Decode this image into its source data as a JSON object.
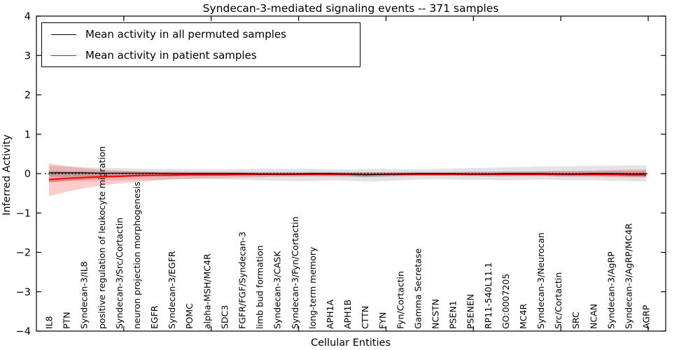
{
  "chart_data": {
    "type": "line",
    "title": "Syndecan-3-mediated signaling events -- 371 samples",
    "xlabel": "Cellular Entities",
    "ylabel": "Inferred Activity",
    "ylim": [
      -4,
      4
    ],
    "yticks": [
      4,
      3,
      2,
      1,
      0,
      -1,
      -2,
      -3,
      -4
    ],
    "x_numeric_ticks": [
      5,
      10,
      15,
      20,
      25,
      30,
      35
    ],
    "xlim": [
      0,
      36
    ],
    "grid": false,
    "zero_reference_line": 0,
    "legend_position": "upper left",
    "categories": [
      "IL8",
      "PTN",
      "Syndecan-3/IL8",
      "positive regulation of leukocyte migration",
      "Syndecan-3/Src/Cortactin",
      "neuron projection morphogenesis",
      "EGFR",
      "Syndecan-3/EGFR",
      "POMC",
      "alpha-MSH/MC4R",
      "SDC3",
      "FGFR/FGF/Syndecan-3",
      "limb bud formation",
      "Syndecan-3/CASK",
      "Syndecan-3/Fyn/Cortactin",
      "long-term memory",
      "APH1A",
      "APH1B",
      "CTTN",
      "FYN",
      "Fyn/Cortactin",
      "Gamma Secretase",
      "NCSTN",
      "PSEN1",
      "PSENEN",
      "RP11-540L11.1",
      "GO:0007205",
      "MC4R",
      "Syndecan-3/Neurocan",
      "Src/Cortactin",
      "SRC",
      "NCAN",
      "Syndecan-3/AgRP",
      "Syndecan-3/AgRP/MC4R",
      "AGRP"
    ],
    "series": [
      {
        "name": "Mean activity in all permuted samples",
        "color": "#000000",
        "line_width": 1.2,
        "values": [
          0.02,
          0.02,
          0.02,
          0.01,
          0.01,
          0.01,
          0.01,
          0.0,
          0.0,
          0.0,
          0.0,
          0.0,
          -0.01,
          -0.01,
          -0.01,
          0.0,
          0.0,
          -0.01,
          -0.02,
          -0.02,
          -0.01,
          0.0,
          0.0,
          0.0,
          -0.01,
          -0.01,
          0.0,
          0.0,
          0.0,
          -0.01,
          -0.01,
          0.0,
          0.0,
          -0.01,
          -0.01
        ],
        "band_outer": {
          "opacity": 0.11,
          "upper": [
            0.2,
            0.18,
            0.16,
            0.15,
            0.14,
            0.13,
            0.12,
            0.12,
            0.11,
            0.11,
            0.11,
            0.12,
            0.12,
            0.12,
            0.12,
            0.12,
            0.11,
            0.11,
            0.12,
            0.12,
            0.11,
            0.11,
            0.12,
            0.13,
            0.14,
            0.15,
            0.16,
            0.17,
            0.18,
            0.19,
            0.19,
            0.2,
            0.2,
            0.21,
            0.21
          ],
          "lower": [
            -0.22,
            -0.2,
            -0.19,
            -0.18,
            -0.17,
            -0.16,
            -0.15,
            -0.14,
            -0.14,
            -0.14,
            -0.15,
            -0.16,
            -0.17,
            -0.18,
            -0.19,
            -0.19,
            -0.17,
            -0.18,
            -0.2,
            -0.19,
            -0.17,
            -0.15,
            -0.14,
            -0.15,
            -0.16,
            -0.16,
            -0.17,
            -0.16,
            -0.15,
            -0.16,
            -0.17,
            -0.17,
            -0.18,
            -0.19,
            -0.2
          ]
        },
        "band_inner": {
          "opacity": 0.16,
          "upper": [
            0.07,
            0.06,
            0.06,
            0.05,
            0.05,
            0.05,
            0.04,
            0.04,
            0.04,
            0.04,
            0.04,
            0.04,
            0.04,
            0.04,
            0.04,
            0.04,
            0.04,
            0.04,
            0.04,
            0.04,
            0.04,
            0.04,
            0.04,
            0.04,
            0.05,
            0.05,
            0.05,
            0.05,
            0.05,
            0.05,
            0.05,
            0.05,
            0.06,
            0.06,
            0.06
          ],
          "lower": [
            -0.08,
            -0.08,
            -0.07,
            -0.07,
            -0.06,
            -0.06,
            -0.06,
            -0.05,
            -0.05,
            -0.05,
            -0.05,
            -0.06,
            -0.06,
            -0.06,
            -0.06,
            -0.06,
            -0.06,
            -0.07,
            -0.09,
            -0.08,
            -0.06,
            -0.05,
            -0.05,
            -0.05,
            -0.06,
            -0.06,
            -0.06,
            -0.05,
            -0.05,
            -0.06,
            -0.06,
            -0.06,
            -0.06,
            -0.07,
            -0.07
          ]
        }
      },
      {
        "name": "Mean activity in patient samples",
        "color": "#ff0000",
        "line_width": 1.8,
        "values": [
          -0.15,
          -0.12,
          -0.1,
          -0.08,
          -0.07,
          -0.05,
          -0.04,
          -0.04,
          -0.03,
          -0.03,
          -0.03,
          -0.02,
          -0.02,
          -0.02,
          -0.02,
          -0.02,
          -0.02,
          -0.02,
          -0.03,
          -0.02,
          -0.02,
          -0.02,
          -0.02,
          -0.02,
          -0.02,
          -0.02,
          -0.02,
          -0.02,
          -0.02,
          -0.02,
          -0.02,
          -0.02,
          -0.02,
          -0.03,
          -0.03
        ],
        "band_outer": {
          "opacity": 0.2,
          "upper": [
            0.26,
            0.19,
            0.14,
            0.1,
            0.08,
            0.06,
            0.05,
            0.05,
            0.04,
            0.04,
            0.04,
            0.03,
            0.03,
            0.03,
            0.03,
            0.03,
            0.03,
            0.03,
            0.03,
            0.03,
            0.03,
            0.03,
            0.03,
            0.03,
            0.04,
            0.04,
            0.05,
            0.05,
            0.06,
            0.07,
            0.07,
            0.08,
            0.09,
            0.1,
            0.11
          ],
          "lower": [
            -0.57,
            -0.46,
            -0.37,
            -0.3,
            -0.25,
            -0.21,
            -0.18,
            -0.15,
            -0.13,
            -0.12,
            -0.11,
            -0.1,
            -0.09,
            -0.08,
            -0.08,
            -0.07,
            -0.07,
            -0.07,
            -0.08,
            -0.07,
            -0.07,
            -0.06,
            -0.06,
            -0.06,
            -0.06,
            -0.07,
            -0.07,
            -0.07,
            -0.07,
            -0.08,
            -0.08,
            -0.08,
            -0.09,
            -0.1,
            -0.1
          ]
        },
        "band_inner": {
          "opacity": 0.3,
          "upper": [
            -0.12,
            -0.09,
            -0.07,
            -0.05,
            -0.04,
            -0.02,
            -0.01,
            -0.01,
            0.0,
            0.0,
            0.0,
            0.01,
            0.01,
            0.01,
            0.01,
            0.01,
            0.01,
            0.01,
            0.0,
            0.01,
            0.01,
            0.01,
            0.01,
            0.01,
            0.01,
            0.01,
            0.01,
            0.01,
            0.01,
            0.01,
            0.01,
            0.02,
            0.02,
            0.02,
            0.03
          ],
          "lower": [
            -0.22,
            -0.18,
            -0.15,
            -0.12,
            -0.1,
            -0.08,
            -0.07,
            -0.07,
            -0.06,
            -0.06,
            -0.05,
            -0.05,
            -0.04,
            -0.04,
            -0.04,
            -0.04,
            -0.04,
            -0.04,
            -0.05,
            -0.04,
            -0.04,
            -0.04,
            -0.04,
            -0.04,
            -0.04,
            -0.04,
            -0.04,
            -0.04,
            -0.04,
            -0.05,
            -0.05,
            -0.05,
            -0.06,
            -0.06,
            -0.07
          ]
        }
      }
    ]
  },
  "legend": {
    "entries": [
      {
        "label": "Mean activity in all permuted samples",
        "color": "#000000"
      },
      {
        "label": "Mean activity in patient samples",
        "color": "#ff0000"
      }
    ]
  }
}
